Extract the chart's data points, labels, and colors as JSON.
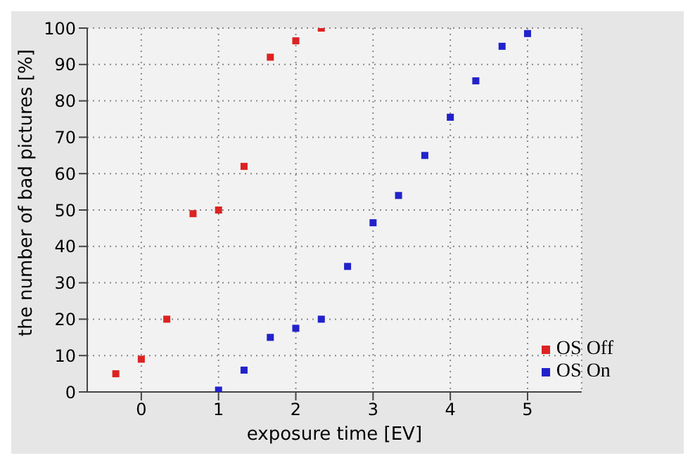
{
  "chart_data": {
    "type": "scatter",
    "xlabel": "exposure time [EV]",
    "ylabel": "the number of bad pictures [%]",
    "series": [
      {
        "name": "OS Off",
        "color": "#dd2222",
        "x": [
          -0.33,
          0,
          0.33,
          0.67,
          1,
          1.33,
          1.67,
          2,
          2.33
        ],
        "values": [
          5,
          9,
          20,
          49,
          50,
          62,
          92,
          96.5,
          100
        ]
      },
      {
        "name": "OS On",
        "color": "#2222cc",
        "x": [
          1,
          1.33,
          1.67,
          2,
          2.33,
          2.67,
          3,
          3.33,
          3.67,
          4,
          4.33,
          4.67,
          5
        ],
        "values": [
          0.5,
          6,
          15,
          17.5,
          20,
          34.5,
          46.5,
          54,
          65,
          75.5,
          85.5,
          95,
          98.5
        ]
      }
    ],
    "xlim": [
      -0.7,
      5.7
    ],
    "xticks": [
      0,
      1,
      2,
      3,
      4,
      5
    ],
    "ylim": [
      0,
      100
    ],
    "yticks": [
      0,
      10,
      20,
      30,
      40,
      50,
      60,
      70,
      80,
      90,
      100
    ],
    "grid": true,
    "legend": "bottom right",
    "marker": "square"
  }
}
